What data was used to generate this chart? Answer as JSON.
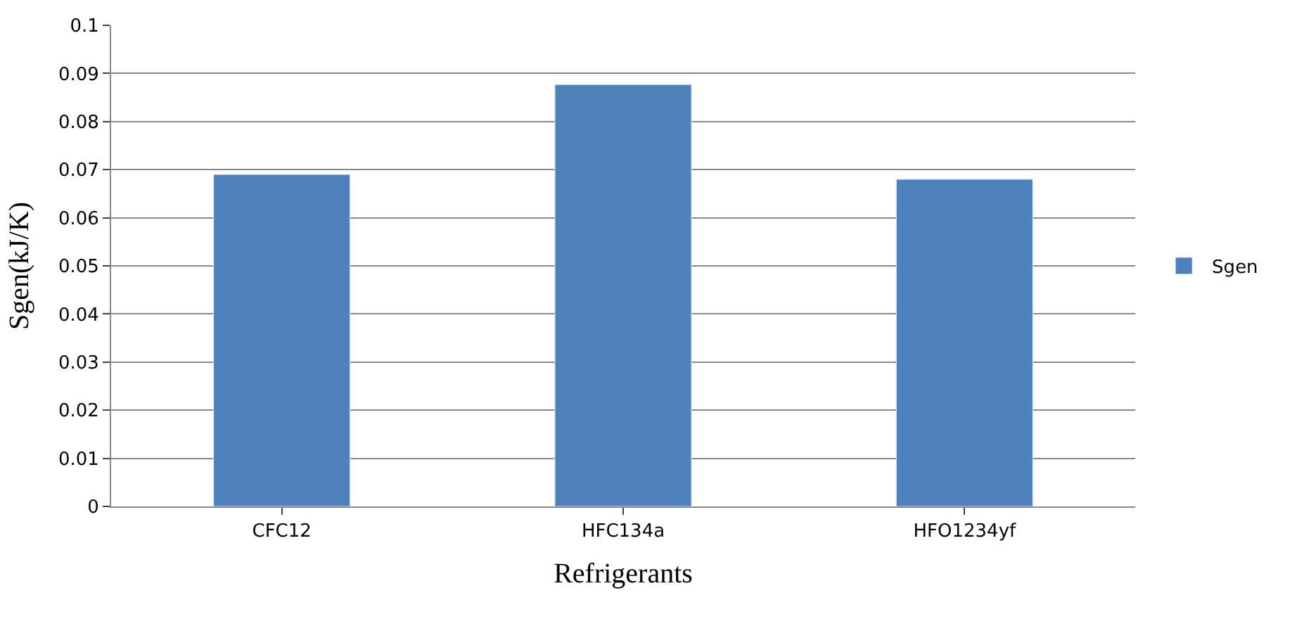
{
  "chart_data": {
    "type": "bar",
    "xlabel": "Refrigerants",
    "ylabel": "Sgen(kJ/K)",
    "categories": [
      "CFC12",
      "HFC134a",
      "HFO1234yf"
    ],
    "series": [
      {
        "name": "Sgen",
        "color": "#4f81bd",
        "values": [
          0.069,
          0.0877,
          0.068
        ]
      }
    ],
    "ylim": [
      0,
      0.1
    ],
    "yticks": [
      0,
      0.01,
      0.02,
      0.03,
      0.04,
      0.05,
      0.06,
      0.07,
      0.08,
      0.09,
      0.1
    ],
    "grid": "y",
    "legend": "right"
  }
}
